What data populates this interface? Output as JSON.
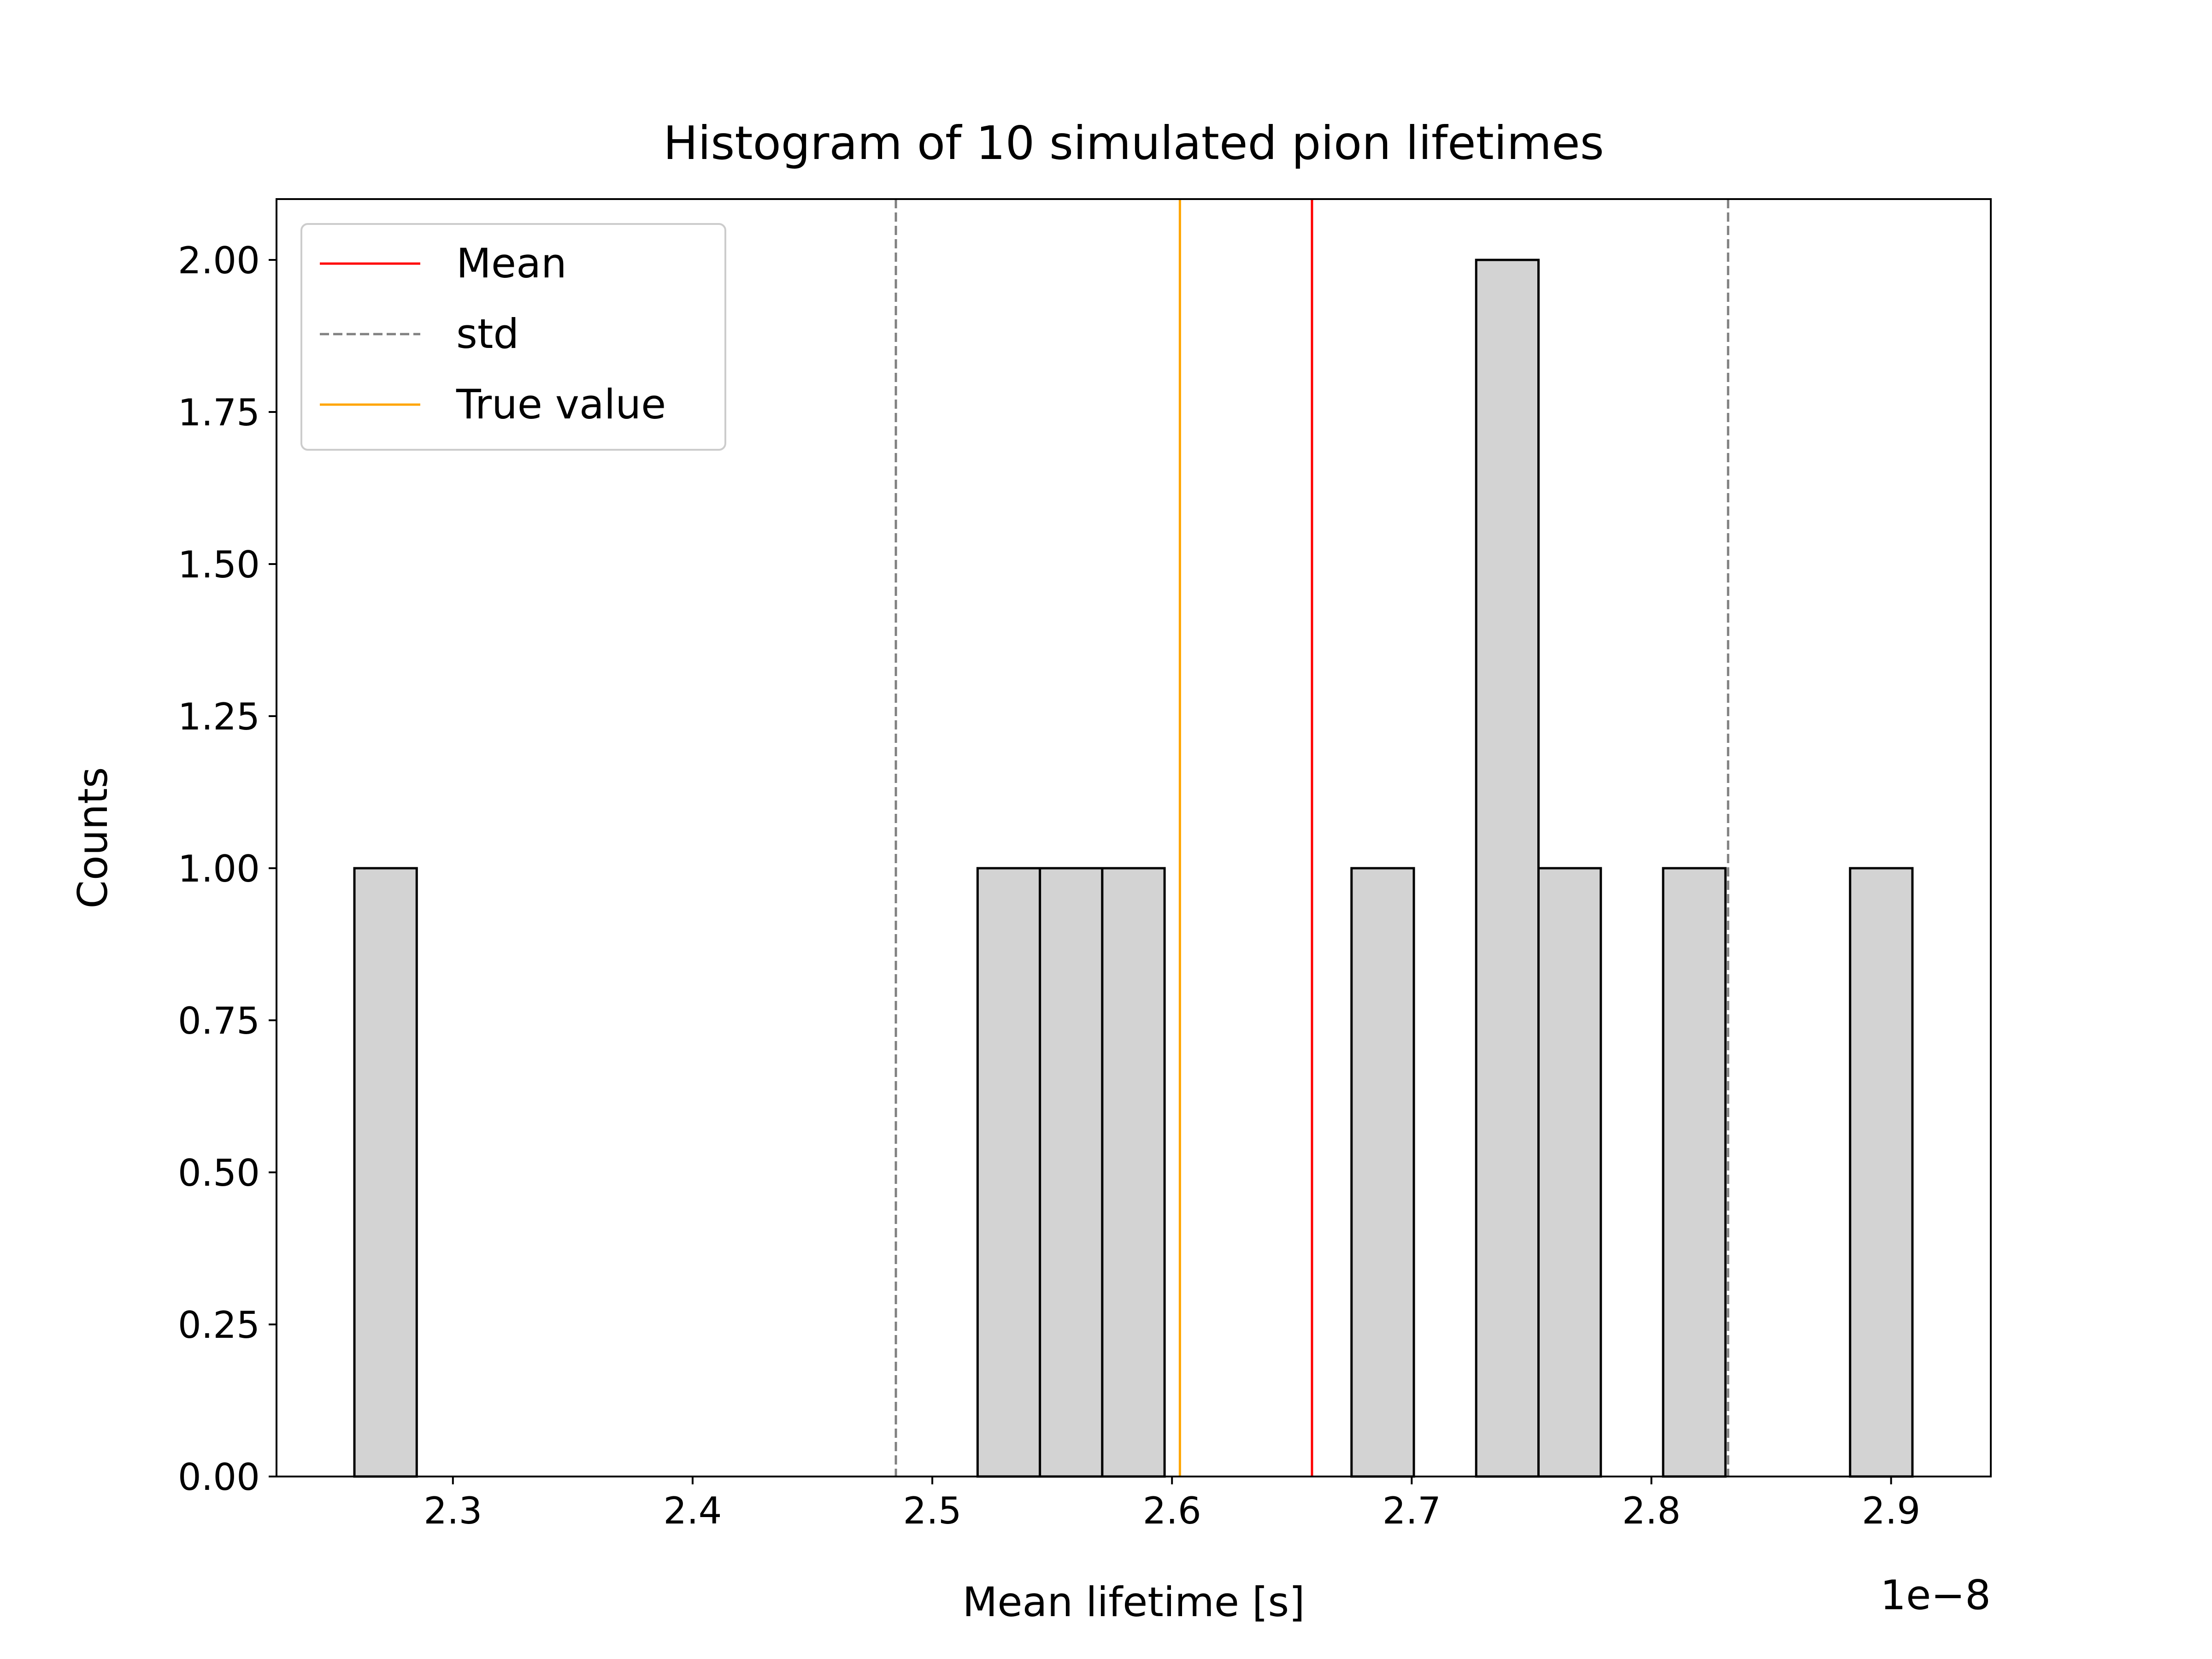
{
  "chart_data": {
    "type": "bar",
    "title": "Histogram of 10 simulated pion lifetimes",
    "xlabel": "Mean lifetime [s]",
    "ylabel": "Counts",
    "x_offset_text": "1e−8",
    "xlim": [
      2.2264,
      2.9416
    ],
    "ylim": [
      0,
      2.1
    ],
    "xticks": [
      2.3,
      2.4,
      2.5,
      2.6,
      2.7,
      2.8,
      2.9
    ],
    "xtick_labels": [
      "2.3",
      "2.4",
      "2.5",
      "2.6",
      "2.7",
      "2.8",
      "2.9"
    ],
    "yticks": [
      0,
      0.25,
      0.5,
      0.75,
      1.0,
      1.25,
      1.5,
      1.75,
      2.0
    ],
    "ytick_labels": [
      "0.00",
      "0.25",
      "0.50",
      "0.75",
      "1.00",
      "1.25",
      "1.50",
      "1.75",
      "2.00"
    ],
    "bin_width": 0.026,
    "bars": [
      {
        "x0": 2.2589,
        "count": 1
      },
      {
        "x0": 2.5189,
        "count": 1
      },
      {
        "x0": 2.5449,
        "count": 1
      },
      {
        "x0": 2.5709,
        "count": 1
      },
      {
        "x0": 2.6749,
        "count": 1
      },
      {
        "x0": 2.7269,
        "count": 2
      },
      {
        "x0": 2.7529,
        "count": 1
      },
      {
        "x0": 2.8049,
        "count": 1
      },
      {
        "x0": 2.8829,
        "count": 1
      }
    ],
    "vlines": [
      {
        "name": "Mean",
        "x": 2.6584,
        "color": "#ff0000",
        "style": "solid"
      },
      {
        "name": "std",
        "x": 2.4848,
        "color": "#808080",
        "style": "dashed"
      },
      {
        "name": "std",
        "x": 2.832,
        "color": "#808080",
        "style": "dashed"
      },
      {
        "name": "True value",
        "x": 2.6033,
        "color": "#ffa500",
        "style": "solid"
      }
    ],
    "legend": {
      "placement": "upper-left",
      "entries": [
        {
          "label": "Mean",
          "color": "#ff0000",
          "style": "solid"
        },
        {
          "label": "std",
          "color": "#808080",
          "style": "dashed"
        },
        {
          "label": "True value",
          "color": "#ffa500",
          "style": "solid"
        }
      ]
    },
    "bar_fill": "#d3d3d3",
    "bar_edge": "#000000",
    "grid": false
  }
}
